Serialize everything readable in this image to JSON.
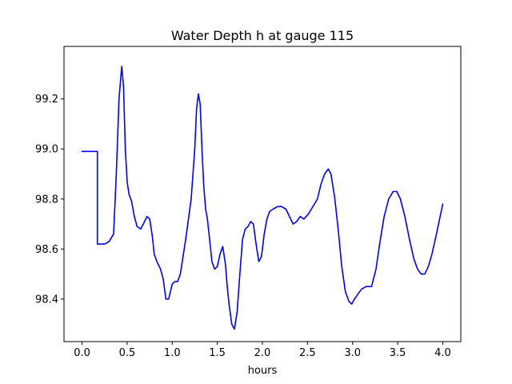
{
  "chart_data": {
    "type": "line",
    "title": "Water Depth h at gauge 115",
    "xlabel": "hours",
    "ylabel": "",
    "xlim": [
      -0.2,
      4.2
    ],
    "ylim": [
      98.23,
      99.41
    ],
    "xticks": [
      0.0,
      0.5,
      1.0,
      1.5,
      2.0,
      2.5,
      3.0,
      3.5,
      4.0
    ],
    "xtick_labels": [
      "0.0",
      "0.5",
      "1.0",
      "1.5",
      "2.0",
      "2.5",
      "3.0",
      "3.5",
      "4.0"
    ],
    "yticks": [
      98.4,
      98.6,
      98.8,
      99.0,
      99.2
    ],
    "ytick_labels": [
      "98.4",
      "98.6",
      "98.8",
      "99.0",
      "99.2"
    ],
    "grid": false,
    "series": [
      {
        "color": "#0000ff",
        "x": [
          0.0,
          0.17,
          0.17,
          0.25,
          0.3,
          0.35,
          0.38,
          0.41,
          0.44,
          0.46,
          0.48,
          0.5,
          0.52,
          0.55,
          0.58,
          0.61,
          0.65,
          0.68,
          0.72,
          0.75,
          0.78,
          0.8,
          0.83,
          0.87,
          0.9,
          0.93,
          0.96,
          0.98,
          1.0,
          1.03,
          1.06,
          1.09,
          1.12,
          1.15,
          1.18,
          1.21,
          1.25,
          1.27,
          1.29,
          1.31,
          1.33,
          1.35,
          1.37,
          1.39,
          1.42,
          1.44,
          1.47,
          1.5,
          1.53,
          1.56,
          1.59,
          1.61,
          1.63,
          1.66,
          1.69,
          1.72,
          1.75,
          1.78,
          1.81,
          1.84,
          1.87,
          1.9,
          1.93,
          1.96,
          1.99,
          2.02,
          2.05,
          2.08,
          2.12,
          2.17,
          2.21,
          2.26,
          2.3,
          2.34,
          2.38,
          2.42,
          2.46,
          2.51,
          2.56,
          2.61,
          2.65,
          2.69,
          2.73,
          2.76,
          2.8,
          2.84,
          2.88,
          2.92,
          2.96,
          2.99,
          3.02,
          3.06,
          3.1,
          3.15,
          3.21,
          3.26,
          3.3,
          3.35,
          3.4,
          3.45,
          3.49,
          3.53,
          3.58,
          3.63,
          3.68,
          3.72,
          3.76,
          3.8,
          3.84,
          3.88,
          3.93,
          4.0
        ],
        "y": [
          98.99,
          98.99,
          98.62,
          98.62,
          98.63,
          98.66,
          98.9,
          99.2,
          99.33,
          99.25,
          99.0,
          98.87,
          98.82,
          98.79,
          98.73,
          98.69,
          98.68,
          98.7,
          98.73,
          98.72,
          98.65,
          98.58,
          98.55,
          98.52,
          98.48,
          98.4,
          98.4,
          98.43,
          98.46,
          98.47,
          98.47,
          98.5,
          98.57,
          98.64,
          98.72,
          98.8,
          99.0,
          99.16,
          99.22,
          99.18,
          99.0,
          98.85,
          98.76,
          98.72,
          98.62,
          98.55,
          98.52,
          98.53,
          98.58,
          98.61,
          98.54,
          98.45,
          98.38,
          98.3,
          98.28,
          98.35,
          98.5,
          98.64,
          98.68,
          98.69,
          98.71,
          98.7,
          98.62,
          98.55,
          98.57,
          98.66,
          98.72,
          98.75,
          98.76,
          98.77,
          98.77,
          98.76,
          98.73,
          98.7,
          98.71,
          98.73,
          98.72,
          98.74,
          98.77,
          98.8,
          98.86,
          98.9,
          98.92,
          98.9,
          98.81,
          98.68,
          98.53,
          98.43,
          98.39,
          98.38,
          98.4,
          98.42,
          98.44,
          98.45,
          98.45,
          98.52,
          98.62,
          98.73,
          98.8,
          98.83,
          98.83,
          98.8,
          98.73,
          98.64,
          98.56,
          98.52,
          98.5,
          98.5,
          98.53,
          98.58,
          98.66,
          98.78
        ]
      }
    ]
  }
}
